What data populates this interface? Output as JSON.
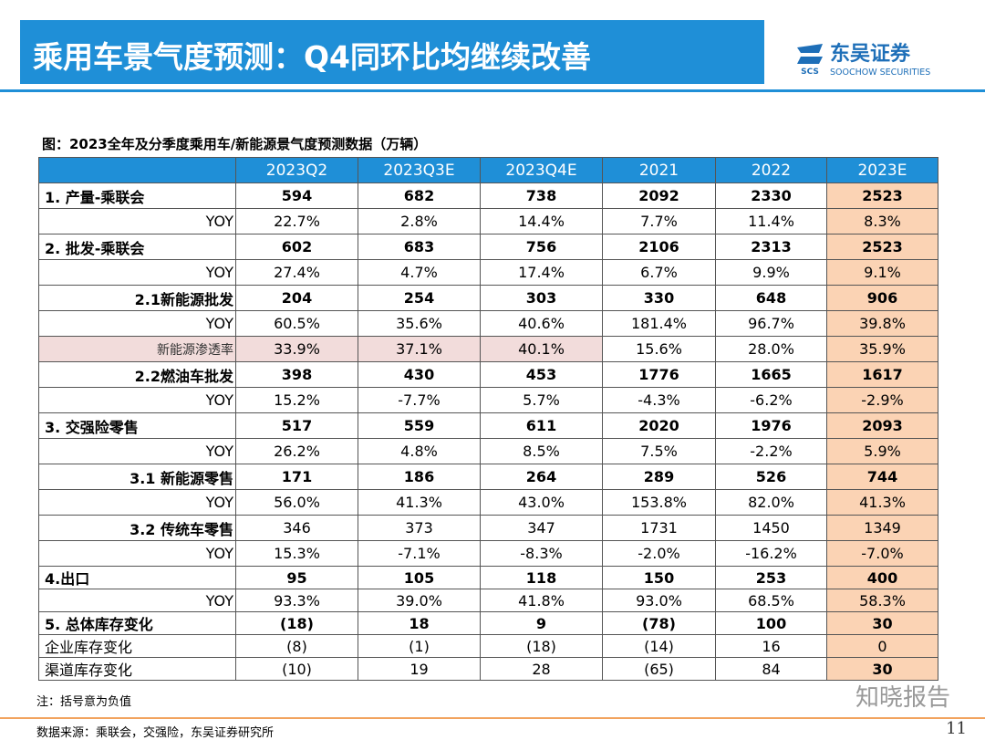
{
  "header": {
    "title": "乘用车景气度预测：Q4同环比均继续改善",
    "logo_mark": "SCS",
    "logo_name": "东吴证券",
    "logo_english": "SOOCHOW SECURITIES"
  },
  "caption": "图：2023全年及分季度乘用车/新能源景气度预测数据（万辆）",
  "table": {
    "columns": [
      "2023Q2",
      "2023Q3E",
      "2023Q4E",
      "2021",
      "2022",
      "2023E"
    ],
    "rows": [
      [
        "1. 产量-乘联会",
        "594",
        "682",
        "738",
        "2092",
        "2330",
        "2523"
      ],
      [
        "YOY",
        "22.7%",
        "2.8%",
        "14.4%",
        "7.7%",
        "11.4%",
        "8.3%"
      ],
      [
        "2. 批发-乘联会",
        "602",
        "683",
        "756",
        "2106",
        "2313",
        "2523"
      ],
      [
        "YOY",
        "27.4%",
        "4.7%",
        "17.4%",
        "6.7%",
        "9.9%",
        "9.1%"
      ],
      [
        "2.1新能源批发",
        "204",
        "254",
        "303",
        "330",
        "648",
        "906"
      ],
      [
        "YOY",
        "60.5%",
        "35.6%",
        "40.6%",
        "181.4%",
        "96.7%",
        "39.8%"
      ],
      [
        "新能源渗透率",
        "33.9%",
        "37.1%",
        "40.1%",
        "15.6%",
        "28.0%",
        "35.9%"
      ],
      [
        "2.2燃油车批发",
        "398",
        "430",
        "453",
        "1776",
        "1665",
        "1617"
      ],
      [
        "YOY",
        "15.2%",
        "-7.7%",
        "5.7%",
        "-4.3%",
        "-6.2%",
        "-2.9%"
      ],
      [
        "3. 交强险零售",
        "517",
        "559",
        "611",
        "2020",
        "1976",
        "2093"
      ],
      [
        "YOY",
        "26.2%",
        "4.8%",
        "8.5%",
        "7.5%",
        "-2.2%",
        "5.9%"
      ],
      [
        "3.1 新能源零售",
        "171",
        "186",
        "264",
        "289",
        "526",
        "744"
      ],
      [
        "YOY",
        "56.0%",
        "41.3%",
        "43.0%",
        "153.8%",
        "82.0%",
        "41.3%"
      ],
      [
        "3.2 传统车零售",
        "346",
        "373",
        "347",
        "1731",
        "1450",
        "1349"
      ],
      [
        "YOY",
        "15.3%",
        "-7.1%",
        "-8.3%",
        "-2.0%",
        "-16.2%",
        "-7.0%"
      ],
      [
        "4.出口",
        "95",
        "105",
        "118",
        "150",
        "253",
        "400"
      ],
      [
        "YOY",
        "93.3%",
        "39.0%",
        "41.8%",
        "93.0%",
        "68.5%",
        "58.3%"
      ],
      [
        "5. 总体库存变化",
        "(18)",
        "18",
        "9",
        "(78)",
        "100",
        "30"
      ],
      [
        "企业库存变化",
        "(8)",
        "(1)",
        "(18)",
        "(14)",
        "16",
        "0"
      ],
      [
        "渠道库存变化",
        "(10)",
        "19",
        "28",
        "(65)",
        "84",
        "30"
      ]
    ]
  },
  "note": "注：括号意为负值",
  "source": "数据来源：乘联会，交强险，东吴证券研究所",
  "watermark": "知晓报告",
  "page_number": "11"
}
